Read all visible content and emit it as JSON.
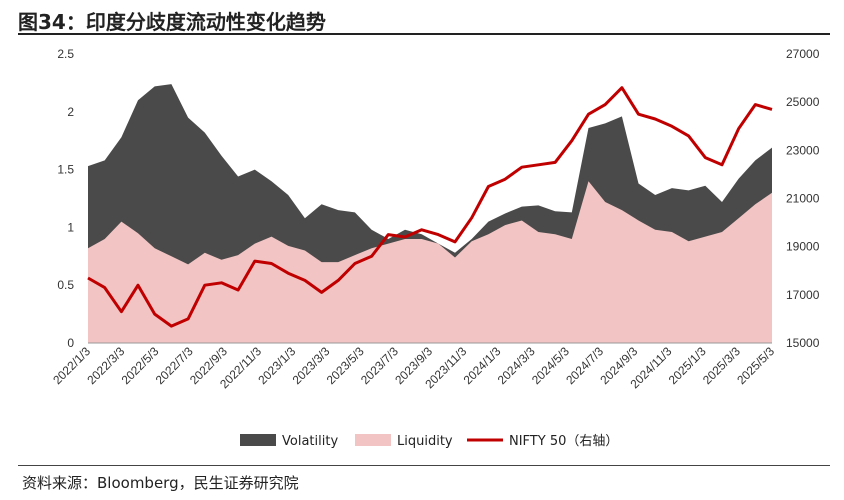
{
  "title": "图34：印度分歧度流动性变化趋势",
  "source": "资料来源：Bloomberg，民生证券研究院",
  "chart_data": {
    "type": "area",
    "title": "图34：印度分歧度流动性变化趋势",
    "left_axis": {
      "min": 0,
      "max": 2.5,
      "ticks": [
        "0",
        "0.5",
        "1",
        "1.5",
        "2",
        "2.5"
      ]
    },
    "right_axis": {
      "min": 15000,
      "max": 27000,
      "ticks": [
        "15000",
        "17000",
        "19000",
        "21000",
        "23000",
        "25000",
        "27000"
      ]
    },
    "x_ticks": [
      "2022/1/3",
      "2022/3/3",
      "2022/5/3",
      "2022/7/3",
      "2022/9/3",
      "2022/11/3",
      "2023/1/3",
      "2023/3/3",
      "2023/5/3",
      "2023/7/3",
      "2023/9/3",
      "2023/11/3",
      "2024/1/3",
      "2024/3/3",
      "2024/5/3",
      "2024/7/3",
      "2024/9/3",
      "2024/11/3",
      "2025/1/3",
      "2025/3/3",
      "2025/5/3"
    ],
    "x": [
      "2022/1",
      "2022/2",
      "2022/3",
      "2022/4",
      "2022/5",
      "2022/6",
      "2022/7",
      "2022/8",
      "2022/9",
      "2022/10",
      "2022/11",
      "2022/12",
      "2023/1",
      "2023/2",
      "2023/3",
      "2023/4",
      "2023/5",
      "2023/6",
      "2023/7",
      "2023/8",
      "2023/9",
      "2023/10",
      "2023/11",
      "2023/12",
      "2024/1",
      "2024/2",
      "2024/3",
      "2024/4",
      "2024/5",
      "2024/6",
      "2024/7",
      "2024/8",
      "2024/9",
      "2024/10",
      "2024/11",
      "2024/12",
      "2025/1",
      "2025/2",
      "2025/3",
      "2025/4",
      "2025/5",
      "2025/6"
    ],
    "series": [
      {
        "name": "Volatility",
        "axis": "left",
        "color": "#4a4a4a",
        "values": [
          1.53,
          1.58,
          1.78,
          2.1,
          2.22,
          2.24,
          1.95,
          1.82,
          1.62,
          1.44,
          1.5,
          1.4,
          1.28,
          1.08,
          1.2,
          1.15,
          1.13,
          0.98,
          0.9,
          0.98,
          0.94,
          0.86,
          0.78,
          0.9,
          1.05,
          1.12,
          1.18,
          1.19,
          1.14,
          1.13,
          1.86,
          1.9,
          1.96,
          1.38,
          1.28,
          1.34,
          1.32,
          1.36,
          1.22,
          1.42,
          1.58,
          1.69
        ]
      },
      {
        "name": "Liquidity",
        "axis": "left",
        "color": "#f2c4c4",
        "values": [
          0.82,
          0.9,
          1.05,
          0.95,
          0.82,
          0.75,
          0.68,
          0.78,
          0.72,
          0.76,
          0.86,
          0.92,
          0.84,
          0.8,
          0.7,
          0.7,
          0.76,
          0.82,
          0.86,
          0.9,
          0.9,
          0.86,
          0.74,
          0.88,
          0.94,
          1.02,
          1.06,
          0.96,
          0.94,
          0.9,
          1.4,
          1.22,
          1.15,
          1.06,
          0.98,
          0.96,
          0.88,
          0.92,
          0.96,
          1.08,
          1.2,
          1.3
        ]
      },
      {
        "name": "NIFTY 50（右轴）",
        "axis": "right",
        "color": "#c00000",
        "values": [
          17700,
          17300,
          16300,
          17400,
          16200,
          15700,
          16000,
          17400,
          17500,
          17200,
          18400,
          18300,
          17900,
          17600,
          17100,
          17600,
          18300,
          18600,
          19500,
          19400,
          19700,
          19500,
          19200,
          20200,
          21500,
          21800,
          22300,
          22400,
          22500,
          23400,
          24500,
          24900,
          25600,
          24500,
          24300,
          24000,
          23600,
          22700,
          22400,
          23900,
          24900,
          24700
        ]
      }
    ],
    "legend_position": "bottom"
  }
}
